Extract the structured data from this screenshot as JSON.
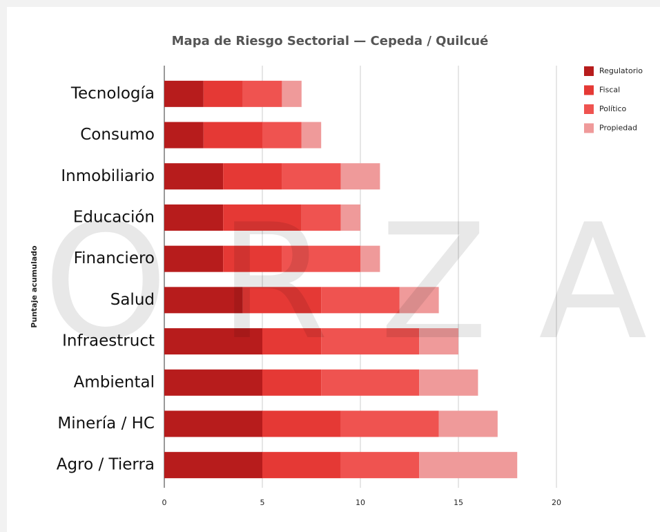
{
  "chart_data": {
    "type": "stacked_barh",
    "title": "Mapa de Riesgo Sectorial — Cepeda / Quilcué",
    "y_axis_label": "Puntaje acumulado",
    "watermark": "O R Z A",
    "categories": [
      "Tecnología",
      "Consumo",
      "Inmobiliario",
      "Educación",
      "Financiero",
      "Salud",
      "Infraestruct",
      "Ambiental",
      "Minería / HC",
      "Agro / Tierra"
    ],
    "series": [
      {
        "name": "Regulatorio",
        "color": "#b71c1c",
        "values": [
          2,
          2,
          3,
          3,
          3,
          4,
          5,
          5,
          5,
          5
        ]
      },
      {
        "name": "Fiscal",
        "color": "#e53935",
        "values": [
          2,
          3,
          3,
          4,
          3,
          4,
          3,
          3,
          4,
          4
        ]
      },
      {
        "name": "Político",
        "color": "#ef5350",
        "values": [
          2,
          2,
          3,
          2,
          4,
          4,
          5,
          5,
          5,
          4
        ]
      },
      {
        "name": "Propiedad",
        "color": "#ef9a9a",
        "values": [
          1,
          1,
          2,
          1,
          1,
          2,
          2,
          3,
          3,
          5
        ]
      }
    ],
    "xlim": [
      0,
      20
    ],
    "xticks": [
      0,
      5,
      10,
      15,
      20
    ],
    "grid": true,
    "legend": "top-right"
  }
}
